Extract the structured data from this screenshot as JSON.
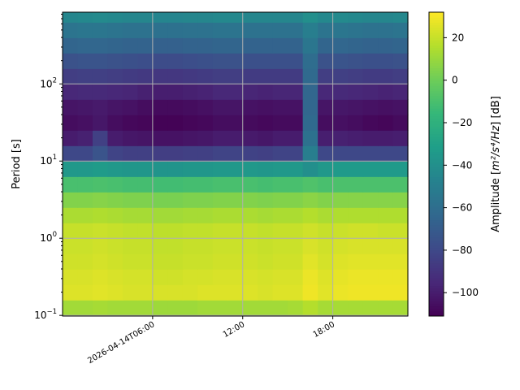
{
  "chart_data": {
    "type": "heatmap",
    "title": "",
    "xlabel": "",
    "ylabel": "Period [s]",
    "y_scale": "log",
    "ylim": [
      0.098,
      850
    ],
    "xlim": [
      "2026-04-14T00:00",
      "2026-04-14T23:00"
    ],
    "x_ticks": [
      {
        "time": "2026-04-14T06:00",
        "label": "2026-04-14T06:00"
      },
      {
        "time": "2026-04-14T12:00",
        "label": "12:00"
      },
      {
        "time": "2026-04-14T18:00",
        "label": "18:00"
      }
    ],
    "y_ticks": [
      {
        "value": 0.1,
        "base": "10",
        "exp": "−1"
      },
      {
        "value": 1,
        "base": "10",
        "exp": "0"
      },
      {
        "value": 10,
        "base": "10",
        "exp": "1"
      },
      {
        "value": 100,
        "base": "10",
        "exp": "2"
      }
    ],
    "grid": true,
    "time_bin_hours": 1,
    "period_edges_log10": [
      -1.0,
      -0.8,
      -0.6,
      -0.4,
      -0.2,
      0.0,
      0.2,
      0.4,
      0.6,
      0.8,
      1.0,
      1.2,
      1.4,
      1.6,
      1.8,
      2.0,
      2.2,
      2.4,
      2.6,
      2.8,
      2.93
    ],
    "values_db": [
      [
        12,
        12,
        13,
        12,
        12,
        12,
        11,
        11,
        11,
        12,
        12,
        12,
        12,
        12,
        12,
        13,
        16,
        13,
        13,
        13,
        13,
        13,
        13
      ],
      [
        25,
        25,
        26,
        25,
        24,
        24,
        24,
        24,
        24,
        25,
        25,
        25,
        25,
        24,
        25,
        25,
        29,
        26,
        28,
        29,
        29,
        29,
        29
      ],
      [
        24,
        24,
        25,
        24,
        23,
        23,
        22,
        22,
        23,
        23,
        24,
        24,
        24,
        23,
        24,
        24,
        28,
        25,
        27,
        28,
        28,
        28,
        28
      ],
      [
        22,
        22,
        23,
        22,
        21,
        21,
        20,
        20,
        21,
        21,
        22,
        22,
        22,
        21,
        22,
        22,
        26,
        23,
        25,
        26,
        26,
        26,
        26
      ],
      [
        21,
        21,
        22,
        21,
        20,
        20,
        19,
        19,
        20,
        20,
        21,
        21,
        21,
        20,
        21,
        21,
        24,
        22,
        23,
        24,
        24,
        24,
        24
      ],
      [
        20,
        20,
        21,
        20,
        19,
        19,
        18,
        18,
        19,
        19,
        20,
        20,
        20,
        19,
        20,
        20,
        22,
        20,
        21,
        22,
        22,
        21,
        21
      ],
      [
        14,
        14,
        15,
        14,
        13,
        13,
        12,
        12,
        13,
        13,
        14,
        14,
        14,
        13,
        14,
        14,
        16,
        14,
        15,
        15,
        15,
        15,
        15
      ],
      [
        5,
        5,
        6,
        5,
        4,
        4,
        3,
        3,
        4,
        4,
        5,
        5,
        5,
        4,
        5,
        5,
        7,
        5,
        6,
        6,
        6,
        6,
        6
      ],
      [
        -10,
        -10,
        -9,
        -10,
        -11,
        -11,
        -12,
        -12,
        -11,
        -11,
        -10,
        -10,
        -10,
        -11,
        -10,
        -10,
        -8,
        -10,
        -9,
        -9,
        -9,
        -9,
        -9
      ],
      [
        -35,
        -35,
        -33,
        -35,
        -36,
        -36,
        -37,
        -37,
        -36,
        -36,
        -35,
        -35,
        -35,
        -36,
        -35,
        -35,
        -40,
        -35,
        -34,
        -34,
        -34,
        -34,
        -34
      ],
      [
        -80,
        -80,
        -74,
        -82,
        -84,
        -84,
        -85,
        -85,
        -84,
        -84,
        -82,
        -82,
        -83,
        -84,
        -82,
        -82,
        -50,
        -80,
        -80,
        -80,
        -80,
        -80,
        -80
      ],
      [
        -100,
        -98,
        -84,
        -100,
        -102,
        -103,
        -104,
        -104,
        -103,
        -102,
        -100,
        -100,
        -101,
        -102,
        -100,
        -100,
        -58,
        -99,
        -98,
        -99,
        -100,
        -100,
        -99
      ],
      [
        -106,
        -105,
        -102,
        -106,
        -108,
        -109,
        -110,
        -110,
        -109,
        -108,
        -106,
        -106,
        -107,
        -108,
        -107,
        -107,
        -62,
        -106,
        -105,
        -106,
        -108,
        -109,
        -107
      ],
      [
        -103,
        -102,
        -101,
        -103,
        -104,
        -106,
        -107,
        -107,
        -106,
        -105,
        -103,
        -103,
        -104,
        -105,
        -104,
        -104,
        -64,
        -103,
        -102,
        -103,
        -104,
        -105,
        -104
      ],
      [
        -95,
        -94,
        -94,
        -95,
        -96,
        -98,
        -99,
        -99,
        -98,
        -97,
        -95,
        -95,
        -96,
        -97,
        -96,
        -96,
        -64,
        -95,
        -94,
        -95,
        -96,
        -97,
        -96
      ],
      [
        -85,
        -84,
        -84,
        -85,
        -86,
        -87,
        -88,
        -88,
        -87,
        -86,
        -85,
        -85,
        -86,
        -86,
        -86,
        -86,
        -62,
        -85,
        -84,
        -85,
        -86,
        -86,
        -85
      ],
      [
        -75,
        -74,
        -74,
        -75,
        -76,
        -77,
        -78,
        -78,
        -77,
        -76,
        -75,
        -75,
        -76,
        -76,
        -76,
        -76,
        -60,
        -75,
        -74,
        -75,
        -76,
        -76,
        -75
      ],
      [
        -65,
        -64,
        -64,
        -65,
        -66,
        -66,
        -67,
        -67,
        -66,
        -66,
        -65,
        -65,
        -66,
        -66,
        -66,
        -66,
        -55,
        -65,
        -64,
        -65,
        -66,
        -66,
        -65
      ],
      [
        -56,
        -55,
        -55,
        -56,
        -57,
        -57,
        -58,
        -58,
        -57,
        -57,
        -56,
        -56,
        -57,
        -57,
        -57,
        -57,
        -50,
        -56,
        -55,
        -56,
        -57,
        -57,
        -56
      ],
      [
        -45,
        -44,
        -43,
        -44,
        -45,
        -45,
        -46,
        -46,
        -45,
        -45,
        -44,
        -44,
        -45,
        -45,
        -45,
        -45,
        -40,
        -44,
        -43,
        -44,
        -45,
        -45,
        -44
      ]
    ],
    "colorbar": {
      "colormap": "viridis",
      "range": [
        -111,
        32
      ],
      "ticks": [
        {
          "value": 20,
          "label": "20"
        },
        {
          "value": 0,
          "label": "0"
        },
        {
          "value": -20,
          "label": "−20"
        },
        {
          "value": -40,
          "label": "−40"
        },
        {
          "value": -60,
          "label": "−60"
        },
        {
          "value": -80,
          "label": "−80"
        },
        {
          "value": -100,
          "label": "−100"
        }
      ],
      "label_prefix": "Amplitude [",
      "label_math": "m²/s⁴/Hz",
      "label_suffix": "] [dB]"
    },
    "grid_color": "#b0b0b0"
  }
}
